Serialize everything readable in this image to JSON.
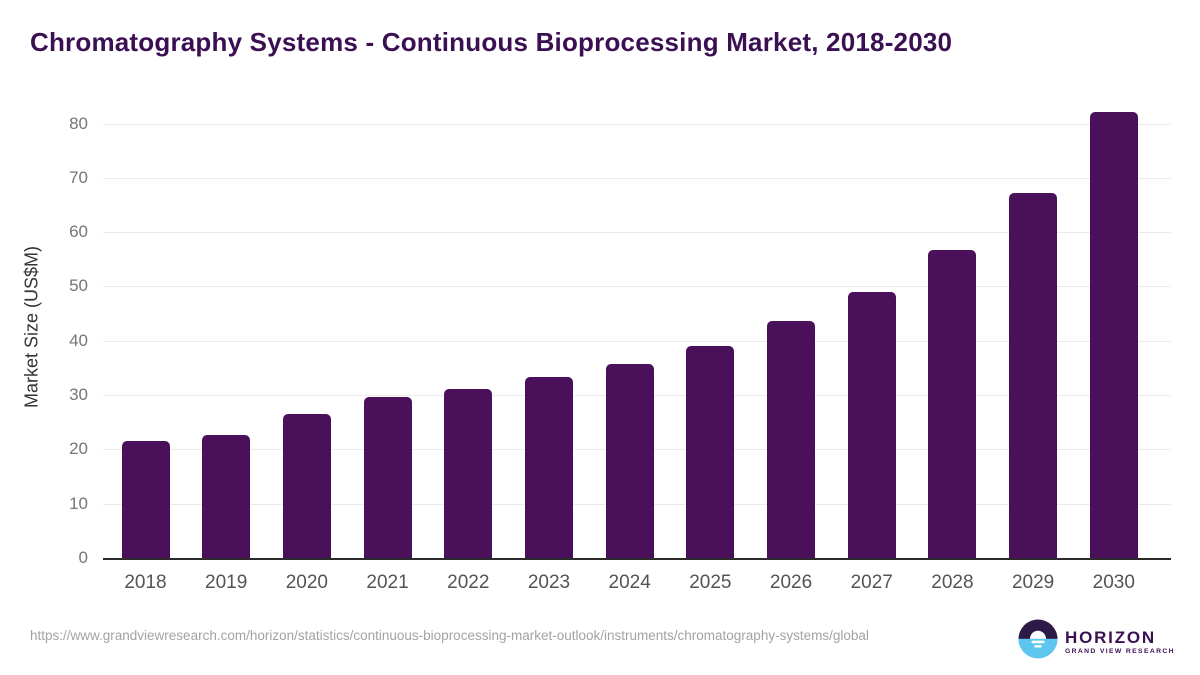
{
  "title": "Chromatography Systems - Continuous Bioprocessing Market, 2018-2030",
  "chart_data": {
    "type": "bar",
    "categories": [
      "2018",
      "2019",
      "2020",
      "2021",
      "2022",
      "2023",
      "2024",
      "2025",
      "2026",
      "2027",
      "2028",
      "2029",
      "2030"
    ],
    "values": [
      21.5,
      22.6,
      26.6,
      29.7,
      31.2,
      33.3,
      35.8,
      39.1,
      43.6,
      49.0,
      56.7,
      67.2,
      82.1
    ],
    "title": "Chromatography Systems - Continuous Bioprocessing Market, 2018-2030",
    "xlabel": "",
    "ylabel": "Market Size (US$M)",
    "ylim": [
      0,
      85
    ],
    "yticks": [
      0,
      10,
      20,
      30,
      40,
      50,
      60,
      70,
      80
    ],
    "grid": true,
    "legend": false,
    "bar_color": "#4a1059"
  },
  "footer": {
    "source_url": "https://www.grandviewresearch.com/horizon/statistics/continuous-bioprocessing-market-outlook/instruments/chromatography-systems/global",
    "logo_name": "HORIZON",
    "logo_subtitle": "GRAND VIEW RESEARCH"
  },
  "colors": {
    "title_text": "#3b1053",
    "bar": "#4a1059",
    "gridline": "#ebebeb",
    "axis_line": "#2b2b2b",
    "y_tick_text": "#757575",
    "x_tick_text": "#545454",
    "url_text": "#a3a3a3",
    "logo_top": "#2e1a47",
    "logo_bottom": "#5ec5ee"
  }
}
